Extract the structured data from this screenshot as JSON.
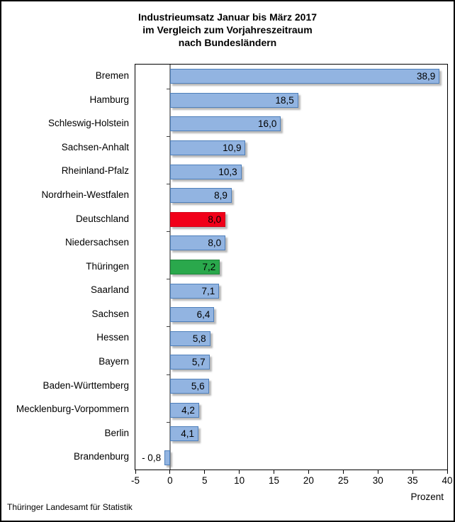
{
  "window": {
    "title_lines": [
      "Industrieumsatz Januar bis März 2017",
      "im Vergleich zum Vorjahreszeitraum",
      "nach Bundesländern"
    ]
  },
  "footer": {
    "source": "Thüringer Landesamt für Statistik"
  },
  "axis": {
    "unit_label": "Prozent"
  },
  "colors": {
    "bar_fill": "#92B4E1",
    "bar_border": "#4E7FBA",
    "red_fill": "#F10019",
    "red_border": "#D20016",
    "green_fill": "#2AA84C",
    "green_border": "#1E8439",
    "zero_line": "#8C8C8C",
    "plot_border": "#000000"
  },
  "chart_data": {
    "type": "bar",
    "orientation": "horizontal",
    "title": "Industrieumsatz Januar bis März 2017 im Vergleich zum Vorjahreszeitraum nach Bundesländern",
    "xlabel": "Prozent",
    "xlim": [
      -5,
      40
    ],
    "x_ticks": [
      -5,
      0,
      5,
      10,
      15,
      20,
      25,
      30,
      35,
      40
    ],
    "grid": false,
    "legend": "none",
    "categories": [
      "Bremen",
      "Hamburg",
      "Schleswig-Holstein",
      "Sachsen-Anhalt",
      "Rheinland-Pfalz",
      "Nordrhein-Westfalen",
      "Deutschland",
      "Niedersachsen",
      "Thüringen",
      "Saarland",
      "Sachsen",
      "Hessen",
      "Bayern",
      "Baden-Württemberg",
      "Mecklenburg-Vorpommern",
      "Berlin",
      "Brandenburg"
    ],
    "values": [
      38.9,
      18.5,
      16.0,
      10.9,
      10.3,
      8.9,
      8.0,
      8.0,
      7.2,
      7.1,
      6.4,
      5.8,
      5.7,
      5.6,
      4.2,
      4.1,
      -0.8
    ],
    "value_labels": [
      "38,9",
      "18,5",
      "16,0",
      "10,9",
      "10,3",
      "8,9",
      "8,0",
      "8,0",
      "7,2",
      "7,1",
      "6,4",
      "5,8",
      "5,7",
      "5,6",
      "4,2",
      "4,1",
      "- 0,8"
    ],
    "bar_colors": [
      "blue",
      "blue",
      "blue",
      "blue",
      "blue",
      "blue",
      "red",
      "blue",
      "green",
      "blue",
      "blue",
      "blue",
      "blue",
      "blue",
      "blue",
      "blue",
      "blue"
    ]
  }
}
